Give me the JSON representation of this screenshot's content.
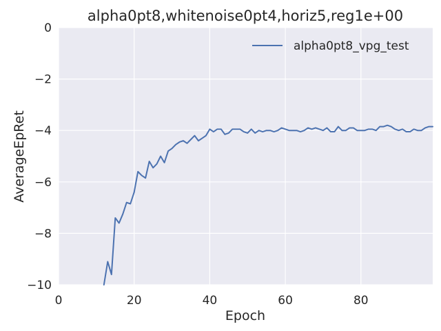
{
  "chart_data": {
    "type": "line",
    "title": "alpha0pt8,whitenoise0pt4,horiz5,reg1e+00",
    "xlabel": "Epoch",
    "ylabel": "AverageEpRet",
    "xlim": [
      0,
      99
    ],
    "ylim": [
      -10,
      0
    ],
    "xticks": [
      0,
      20,
      40,
      60,
      80
    ],
    "xtick_labels": [
      "0",
      "20",
      "40",
      "60",
      "80"
    ],
    "yticks": [
      0,
      -2,
      -4,
      -6,
      -8,
      -10
    ],
    "ytick_labels": [
      "0",
      "−2",
      "−4",
      "−6",
      "−8",
      "−10"
    ],
    "grid": true,
    "legend_position": "top-right",
    "background": "#eaeaf2",
    "series": [
      {
        "name": "alpha0pt8_vpg_test",
        "color": "#4c72b0",
        "x": [
          12,
          13,
          14,
          15,
          16,
          17,
          18,
          19,
          20,
          21,
          22,
          23,
          24,
          25,
          26,
          27,
          28,
          29,
          30,
          31,
          32,
          33,
          34,
          35,
          36,
          37,
          38,
          39,
          40,
          41,
          42,
          43,
          44,
          45,
          46,
          47,
          48,
          49,
          50,
          51,
          52,
          53,
          54,
          55,
          56,
          57,
          58,
          59,
          60,
          61,
          62,
          63,
          64,
          65,
          66,
          67,
          68,
          69,
          70,
          71,
          72,
          73,
          74,
          75,
          76,
          77,
          78,
          79,
          80,
          81,
          82,
          83,
          84,
          85,
          86,
          87,
          88,
          89,
          90,
          91,
          92,
          93,
          94,
          95,
          96,
          97,
          98,
          99
        ],
        "y": [
          -10.0,
          -9.1,
          -9.6,
          -7.4,
          -7.6,
          -7.25,
          -6.8,
          -6.85,
          -6.4,
          -5.6,
          -5.75,
          -5.85,
          -5.2,
          -5.45,
          -5.3,
          -5.0,
          -5.25,
          -4.8,
          -4.7,
          -4.55,
          -4.45,
          -4.4,
          -4.5,
          -4.35,
          -4.2,
          -4.4,
          -4.3,
          -4.2,
          -3.95,
          -4.05,
          -3.95,
          -3.95,
          -4.15,
          -4.1,
          -3.95,
          -3.95,
          -3.95,
          -4.05,
          -4.1,
          -3.95,
          -4.1,
          -4.0,
          -4.05,
          -4.0,
          -4.0,
          -4.05,
          -4.0,
          -3.9,
          -3.95,
          -4.0,
          -4.0,
          -4.0,
          -4.05,
          -4.0,
          -3.9,
          -3.95,
          -3.9,
          -3.95,
          -4.0,
          -3.9,
          -4.05,
          -4.05,
          -3.85,
          -4.0,
          -4.0,
          -3.9,
          -3.9,
          -4.0,
          -4.0,
          -4.0,
          -3.95,
          -3.95,
          -4.0,
          -3.85,
          -3.85,
          -3.8,
          -3.85,
          -3.95,
          -4.0,
          -3.95,
          -4.05,
          -4.05,
          -3.95,
          -4.0,
          -4.0,
          -3.9,
          -3.85,
          -3.85
        ]
      }
    ]
  }
}
